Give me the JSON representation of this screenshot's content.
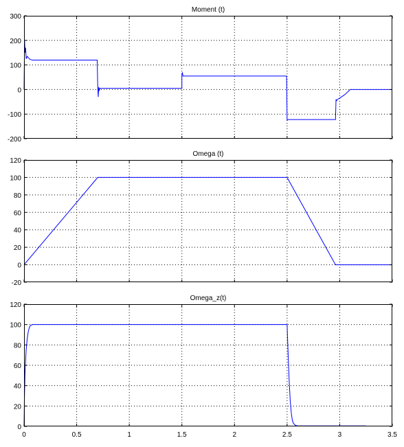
{
  "chart_data": [
    {
      "type": "line",
      "title": "Moment (t)",
      "xlim": [
        0,
        3.5
      ],
      "ylim": [
        -200,
        300
      ],
      "xticks": [
        0,
        0.5,
        1,
        1.5,
        2,
        2.5,
        3,
        3.5
      ],
      "xticklabels": [],
      "yticks": [
        -200,
        -100,
        0,
        100,
        200,
        300
      ],
      "yticklabels": [
        "-200",
        "-100",
        "0",
        "100",
        "200",
        "300"
      ],
      "grid": true,
      "line_color": "#0000ff",
      "series": [
        {
          "x": [
            0,
            0.005,
            0.01,
            0.015,
            0.02,
            0.03,
            0.04,
            0.05,
            0.06,
            0.08,
            0.1,
            0.695,
            0.7,
            0.705,
            0.71,
            0.715,
            0.72,
            0.74,
            0.76,
            0.8,
            1.0,
            1.49,
            1.5,
            1.5,
            1.505,
            1.51,
            1.52,
            1.55,
            2.0,
            2.495,
            2.5,
            2.51,
            2.55,
            2.8,
            2.96,
            2.965,
            2.97,
            2.98,
            3.0,
            3.05,
            3.1,
            3.5
          ],
          "y": [
            0,
            200,
            150,
            170,
            125,
            135,
            130,
            125,
            122,
            120,
            120,
            120,
            20,
            -30,
            10,
            -5,
            5,
            5,
            5,
            5,
            5,
            5,
            5,
            60,
            70,
            55,
            55,
            55,
            55,
            55,
            -125,
            -122,
            -122,
            -122,
            -122,
            -40,
            -45,
            -40,
            -35,
            -20,
            0,
            0
          ]
        }
      ]
    },
    {
      "type": "line",
      "title": "Omega (t)",
      "xlim": [
        0,
        3.5
      ],
      "ylim": [
        -20,
        120
      ],
      "xticks": [
        0,
        0.5,
        1,
        1.5,
        2,
        2.5,
        3,
        3.5
      ],
      "xticklabels": [],
      "yticks": [
        -20,
        0,
        20,
        40,
        60,
        80,
        100,
        120
      ],
      "yticklabels": [
        "-20",
        "0",
        "20",
        "40",
        "60",
        "80",
        "100",
        "120"
      ],
      "grid": true,
      "line_color": "#0000ff",
      "series": [
        {
          "x": [
            0,
            0.7,
            2.5,
            2.96,
            3.5
          ],
          "y": [
            0,
            100,
            100,
            0,
            0
          ]
        }
      ]
    },
    {
      "type": "line",
      "title": "Omega_z(t)",
      "xlim": [
        0,
        3.5
      ],
      "ylim": [
        0,
        120
      ],
      "xticks": [
        0,
        0.5,
        1,
        1.5,
        2,
        2.5,
        3,
        3.5
      ],
      "xticklabels": [
        "0",
        "0.5",
        "1",
        "1.5",
        "2",
        "2.5",
        "3",
        "3.5"
      ],
      "yticks": [
        0,
        20,
        40,
        60,
        80,
        100,
        120
      ],
      "yticklabels": [
        "0",
        "20",
        "40",
        "60",
        "80",
        "100",
        "120"
      ],
      "grid": true,
      "line_color": "#0000ff",
      "series": [
        {
          "x": [
            0,
            0.003,
            0.01,
            0.02,
            0.03,
            0.04,
            0.05,
            0.06,
            0.08,
            0.1,
            2.5,
            2.51,
            2.52,
            2.53,
            2.54,
            2.55,
            2.56,
            2.58,
            2.6,
            3.25
          ],
          "y": [
            0,
            25,
            55,
            75,
            86,
            93,
            97,
            99,
            100,
            100,
            100,
            70,
            44,
            25,
            13,
            6,
            3,
            1,
            0.5,
            0.5
          ]
        }
      ]
    }
  ]
}
